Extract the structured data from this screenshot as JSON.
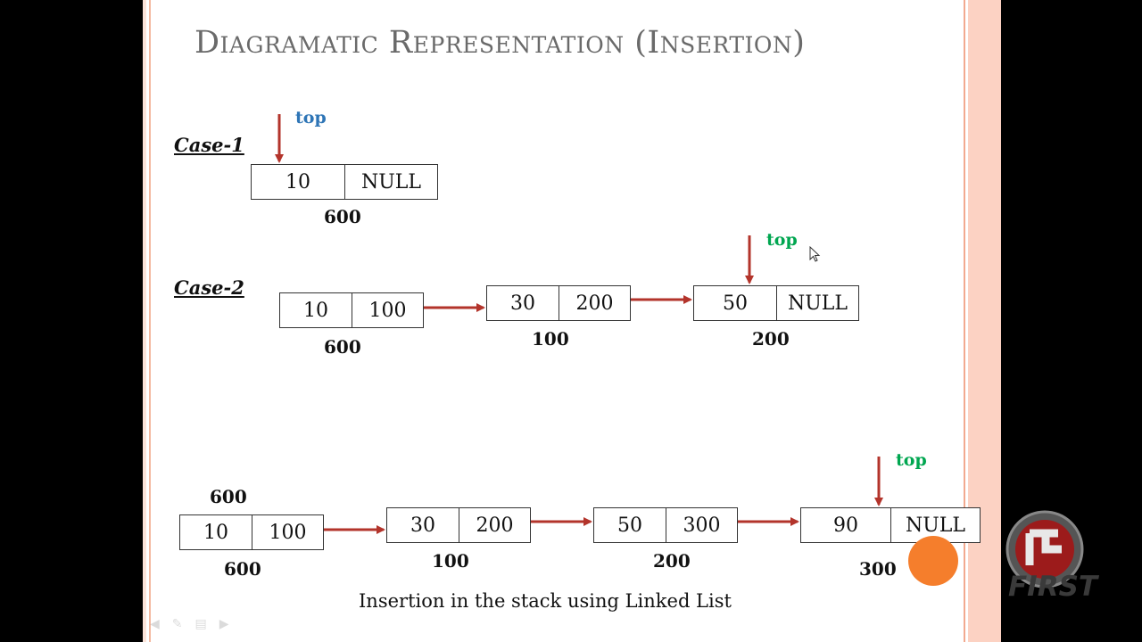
{
  "slide": {
    "title": "Diagramatic Representation (Insertion)",
    "caption": "Insertion in the stack using Linked List"
  },
  "case1": {
    "label": "Case-1",
    "top_label": "top",
    "top_color": "#2e75b6",
    "nodes": [
      {
        "data": "10",
        "next": "NULL",
        "address": "600"
      }
    ]
  },
  "case2": {
    "label": "Case-2",
    "top_label": "top",
    "top_color": "#00a650",
    "nodes": [
      {
        "data": "10",
        "next": "100",
        "address": "600"
      },
      {
        "data": "30",
        "next": "200",
        "address": "100"
      },
      {
        "data": "50",
        "next": "NULL",
        "address": "200"
      }
    ]
  },
  "case3": {
    "top_label": "top",
    "top_color": "#00a650",
    "header_address": "600",
    "nodes": [
      {
        "data": "10",
        "next": "100",
        "address": "600"
      },
      {
        "data": "30",
        "next": "200",
        "address": "100"
      },
      {
        "data": "50",
        "next": "300",
        "address": "200"
      },
      {
        "data": "90",
        "next": "NULL",
        "address": "300"
      }
    ]
  },
  "colors": {
    "arrow": "#b3342b",
    "title": "#6a6a6a",
    "slide_border": "#f4b9a0",
    "pointer_highlight": "#f57e2c"
  },
  "logo": {
    "text": "FIRST",
    "icon": "first-logo-icon"
  },
  "presentation_controls": [
    "previous-icon",
    "pen-icon",
    "menu-icon",
    "next-icon"
  ]
}
